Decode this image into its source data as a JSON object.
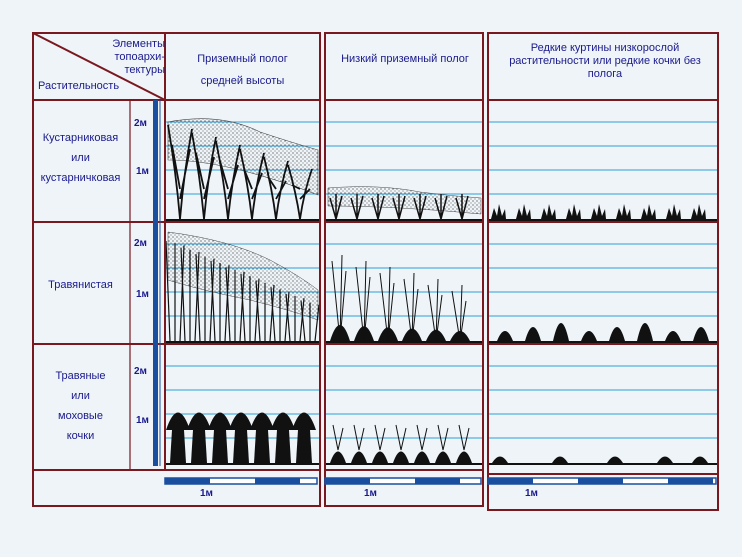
{
  "header": {
    "corner_top": "Элементы топоархи- тектуры",
    "corner_bottom": "Растительность",
    "columns": [
      {
        "label": "Приземный полог средней высоты"
      },
      {
        "label": "Низкий приземный полог"
      },
      {
        "label": "Редкие куртины низкорослой растительности или редкие кочки без полога"
      }
    ]
  },
  "rows": [
    {
      "label_lines": [
        "Кустарниковая",
        "или",
        "кустарничковая"
      ]
    },
    {
      "label_lines": [
        "Травянистая"
      ]
    },
    {
      "label_lines": [
        "Травяные",
        "или",
        "моховые",
        "кочки"
      ]
    }
  ],
  "height_marks": {
    "m2": "2м",
    "m1": "1м"
  },
  "scale_label": "1м",
  "colors": {
    "frame": "#7a1820",
    "text": "#1a1a8c",
    "lines": "#2a9fd6",
    "scale": "#1a4fa0",
    "plant": "#111111"
  }
}
